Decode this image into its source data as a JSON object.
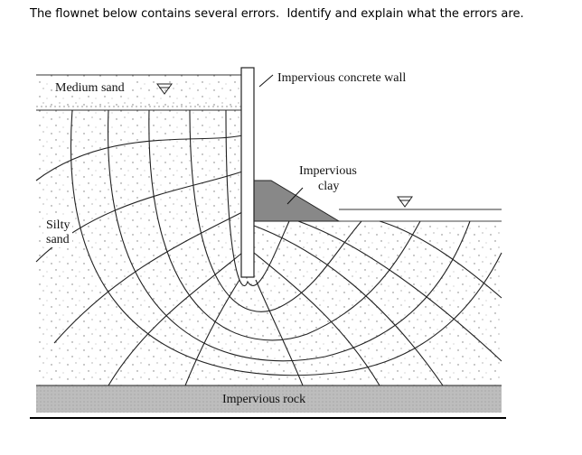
{
  "question": "The flownet below contains several errors.  Identify and explain what the errors are.",
  "labels": {
    "medium_sand": "Medium sand",
    "wall": "Impervious concrete wall",
    "clay": [
      "Impervious",
      "clay"
    ],
    "silty_sand": [
      "Silty",
      "sand"
    ],
    "rock": "Impervious rock"
  }
}
